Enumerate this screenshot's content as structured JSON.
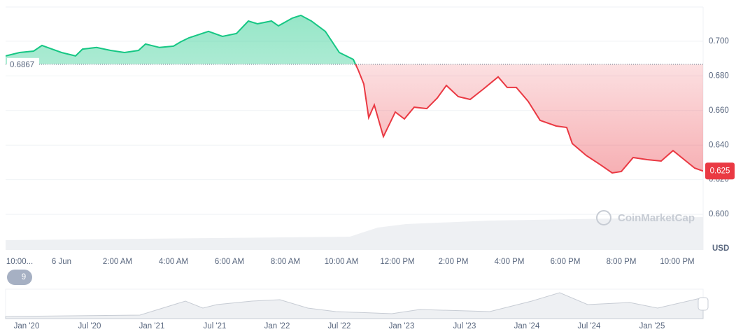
{
  "chart_data": {
    "type": "line",
    "x": [
      -2,
      -1.5,
      -1,
      -0.7,
      -0.5,
      0,
      0.5,
      0.75,
      1.25,
      1.75,
      2.25,
      2.75,
      3,
      3.5,
      4,
      4.25,
      4.55,
      5.25,
      5.75,
      6.25,
      6.675,
      7,
      7.5,
      7.75,
      8.25,
      8.55,
      8.925,
      9.425,
      9.925,
      10.425,
      10.6,
      10.8,
      10.975,
      11.175,
      11.5,
      11.925,
      12.25,
      12.6,
      13.05,
      13.425,
      13.75,
      14.175,
      14.6,
      15.05,
      15.6,
      15.925,
      16.25,
      16.675,
      17.1,
      17.675,
      18.05,
      18.25,
      18.75,
      19.25,
      19.675,
      20,
      20.425,
      20.925,
      21.425,
      21.85,
      22.25,
      22.625,
      22.925
    ],
    "values": [
      0.6915,
      0.6935,
      0.6943,
      0.6976,
      0.6964,
      0.6935,
      0.6915,
      0.6955,
      0.6964,
      0.6947,
      0.6935,
      0.6947,
      0.6984,
      0.6964,
      0.6972,
      0.6996,
      0.702,
      0.7057,
      0.7028,
      0.7045,
      0.7117,
      0.7101,
      0.7117,
      0.7089,
      0.7134,
      0.715,
      0.7117,
      0.7057,
      0.6935,
      0.6895,
      0.6834,
      0.6753,
      0.6559,
      0.6632,
      0.6449,
      0.6591,
      0.6551,
      0.6619,
      0.6611,
      0.6672,
      0.6745,
      0.668,
      0.6664,
      0.6721,
      0.6794,
      0.6733,
      0.6733,
      0.6652,
      0.6543,
      0.651,
      0.6502,
      0.6409,
      0.634,
      0.6287,
      0.6239,
      0.6247,
      0.6328,
      0.6316,
      0.6308,
      0.6368,
      0.6316,
      0.6267,
      0.625
    ],
    "baseline": 0.6867,
    "current_price": 0.625,
    "up_color": "#16c784",
    "down_color": "#ea3943",
    "xlim": [
      -2,
      22.925
    ],
    "xticks": [
      {
        "value": -1.5,
        "label": "10:00..."
      },
      {
        "value": 0,
        "label": "6 Jun"
      },
      {
        "value": 2,
        "label": "2:00 AM"
      },
      {
        "value": 4,
        "label": "4:00 AM"
      },
      {
        "value": 6,
        "label": "6:00 AM"
      },
      {
        "value": 8,
        "label": "8:00 AM"
      },
      {
        "value": 10,
        "label": "10:00 AM"
      },
      {
        "value": 12,
        "label": "12:00 PM"
      },
      {
        "value": 14,
        "label": "2:00 PM"
      },
      {
        "value": 16,
        "label": "4:00 PM"
      },
      {
        "value": 18,
        "label": "6:00 PM"
      },
      {
        "value": 20,
        "label": "8:00 PM"
      },
      {
        "value": 22,
        "label": "10:00 PM"
      }
    ],
    "ylim": [
      0.5794,
      0.7198
    ],
    "yticks": [
      {
        "value": 0.6,
        "label": "0.600"
      },
      {
        "value": 0.62,
        "label": "0.620"
      },
      {
        "value": 0.64,
        "label": "0.640"
      },
      {
        "value": 0.66,
        "label": "0.660"
      },
      {
        "value": 0.68,
        "label": "0.680"
      },
      {
        "value": 0.7,
        "label": "0.700"
      }
    ],
    "grid": true,
    "y_unit": "USD",
    "watermark": "CoinMarketCap",
    "badge": "9",
    "navigator_labels": [
      "Jan '20",
      "Jul '20",
      "Jan '21",
      "Jul '21",
      "Jan '22",
      "Jul '22",
      "Jan '23",
      "Jul '23",
      "Jan '24",
      "Jul '24",
      "Jan '25"
    ]
  }
}
